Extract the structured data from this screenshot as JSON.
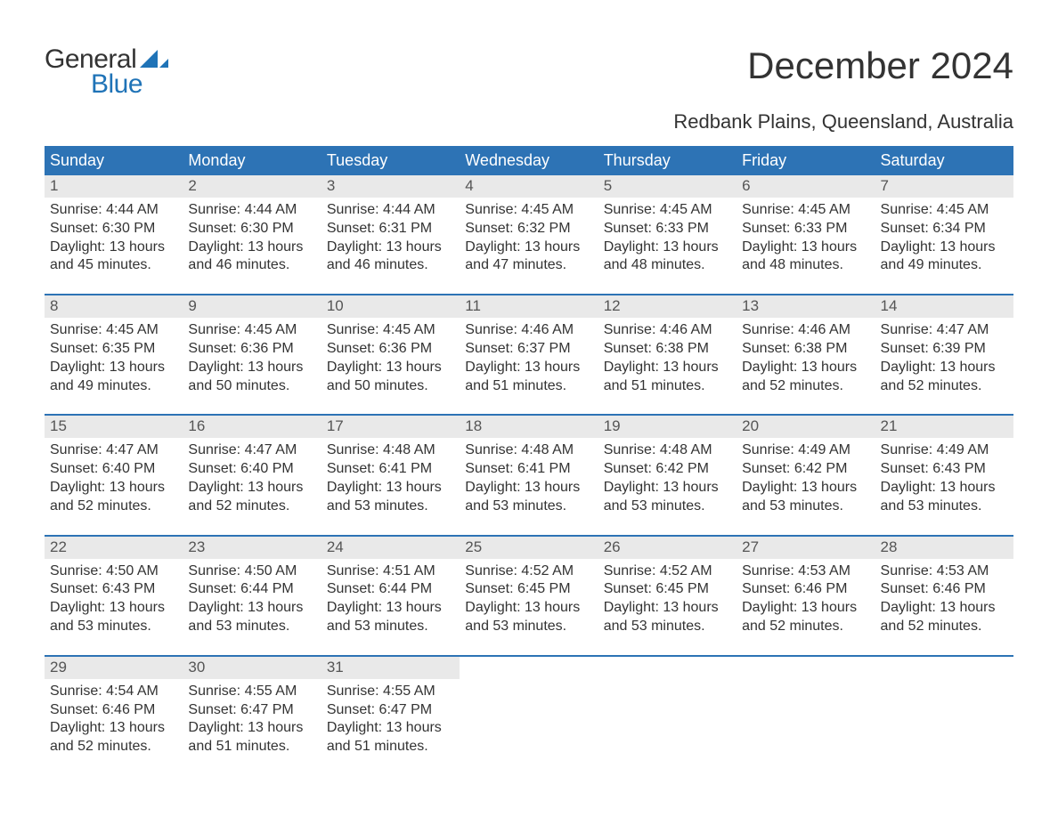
{
  "logo": {
    "word1": "General",
    "word2": "Blue",
    "accent_color": "#1f73b7",
    "text_color": "#333333"
  },
  "header": {
    "month_title": "December 2024",
    "location": "Redbank Plains, Queensland, Australia"
  },
  "colors": {
    "header_bg": "#2d73b5",
    "header_fg": "#ffffff",
    "daynum_bg": "#e9e9e9",
    "daynum_fg": "#555555",
    "rule": "#2d73b5",
    "body_text": "#333333",
    "page_bg": "#ffffff"
  },
  "typography": {
    "month_title_fontsize": 42,
    "location_fontsize": 22,
    "dayhead_fontsize": 18,
    "daynum_fontsize": 17,
    "cell_fontsize": 16,
    "font_family": "Arial"
  },
  "calendar": {
    "type": "table",
    "columns": [
      "Sunday",
      "Monday",
      "Tuesday",
      "Wednesday",
      "Thursday",
      "Friday",
      "Saturday"
    ],
    "weeks": [
      [
        {
          "num": "1",
          "sunrise": "4:44 AM",
          "sunset": "6:30 PM",
          "day_h": "13",
          "day_m": "45"
        },
        {
          "num": "2",
          "sunrise": "4:44 AM",
          "sunset": "6:30 PM",
          "day_h": "13",
          "day_m": "46"
        },
        {
          "num": "3",
          "sunrise": "4:44 AM",
          "sunset": "6:31 PM",
          "day_h": "13",
          "day_m": "46"
        },
        {
          "num": "4",
          "sunrise": "4:45 AM",
          "sunset": "6:32 PM",
          "day_h": "13",
          "day_m": "47"
        },
        {
          "num": "5",
          "sunrise": "4:45 AM",
          "sunset": "6:33 PM",
          "day_h": "13",
          "day_m": "48"
        },
        {
          "num": "6",
          "sunrise": "4:45 AM",
          "sunset": "6:33 PM",
          "day_h": "13",
          "day_m": "48"
        },
        {
          "num": "7",
          "sunrise": "4:45 AM",
          "sunset": "6:34 PM",
          "day_h": "13",
          "day_m": "49"
        }
      ],
      [
        {
          "num": "8",
          "sunrise": "4:45 AM",
          "sunset": "6:35 PM",
          "day_h": "13",
          "day_m": "49"
        },
        {
          "num": "9",
          "sunrise": "4:45 AM",
          "sunset": "6:36 PM",
          "day_h": "13",
          "day_m": "50"
        },
        {
          "num": "10",
          "sunrise": "4:45 AM",
          "sunset": "6:36 PM",
          "day_h": "13",
          "day_m": "50"
        },
        {
          "num": "11",
          "sunrise": "4:46 AM",
          "sunset": "6:37 PM",
          "day_h": "13",
          "day_m": "51"
        },
        {
          "num": "12",
          "sunrise": "4:46 AM",
          "sunset": "6:38 PM",
          "day_h": "13",
          "day_m": "51"
        },
        {
          "num": "13",
          "sunrise": "4:46 AM",
          "sunset": "6:38 PM",
          "day_h": "13",
          "day_m": "52"
        },
        {
          "num": "14",
          "sunrise": "4:47 AM",
          "sunset": "6:39 PM",
          "day_h": "13",
          "day_m": "52"
        }
      ],
      [
        {
          "num": "15",
          "sunrise": "4:47 AM",
          "sunset": "6:40 PM",
          "day_h": "13",
          "day_m": "52"
        },
        {
          "num": "16",
          "sunrise": "4:47 AM",
          "sunset": "6:40 PM",
          "day_h": "13",
          "day_m": "52"
        },
        {
          "num": "17",
          "sunrise": "4:48 AM",
          "sunset": "6:41 PM",
          "day_h": "13",
          "day_m": "53"
        },
        {
          "num": "18",
          "sunrise": "4:48 AM",
          "sunset": "6:41 PM",
          "day_h": "13",
          "day_m": "53"
        },
        {
          "num": "19",
          "sunrise": "4:48 AM",
          "sunset": "6:42 PM",
          "day_h": "13",
          "day_m": "53"
        },
        {
          "num": "20",
          "sunrise": "4:49 AM",
          "sunset": "6:42 PM",
          "day_h": "13",
          "day_m": "53"
        },
        {
          "num": "21",
          "sunrise": "4:49 AM",
          "sunset": "6:43 PM",
          "day_h": "13",
          "day_m": "53"
        }
      ],
      [
        {
          "num": "22",
          "sunrise": "4:50 AM",
          "sunset": "6:43 PM",
          "day_h": "13",
          "day_m": "53"
        },
        {
          "num": "23",
          "sunrise": "4:50 AM",
          "sunset": "6:44 PM",
          "day_h": "13",
          "day_m": "53"
        },
        {
          "num": "24",
          "sunrise": "4:51 AM",
          "sunset": "6:44 PM",
          "day_h": "13",
          "day_m": "53"
        },
        {
          "num": "25",
          "sunrise": "4:52 AM",
          "sunset": "6:45 PM",
          "day_h": "13",
          "day_m": "53"
        },
        {
          "num": "26",
          "sunrise": "4:52 AM",
          "sunset": "6:45 PM",
          "day_h": "13",
          "day_m": "53"
        },
        {
          "num": "27",
          "sunrise": "4:53 AM",
          "sunset": "6:46 PM",
          "day_h": "13",
          "day_m": "52"
        },
        {
          "num": "28",
          "sunrise": "4:53 AM",
          "sunset": "6:46 PM",
          "day_h": "13",
          "day_m": "52"
        }
      ],
      [
        {
          "num": "29",
          "sunrise": "4:54 AM",
          "sunset": "6:46 PM",
          "day_h": "13",
          "day_m": "52"
        },
        {
          "num": "30",
          "sunrise": "4:55 AM",
          "sunset": "6:47 PM",
          "day_h": "13",
          "day_m": "51"
        },
        {
          "num": "31",
          "sunrise": "4:55 AM",
          "sunset": "6:47 PM",
          "day_h": "13",
          "day_m": "51"
        },
        null,
        null,
        null,
        null
      ]
    ],
    "labels": {
      "sunrise_prefix": "Sunrise: ",
      "sunset_prefix": "Sunset: ",
      "daylight_prefix": "Daylight: ",
      "hours_word": " hours",
      "and_word": "and ",
      "minutes_word": " minutes."
    }
  }
}
